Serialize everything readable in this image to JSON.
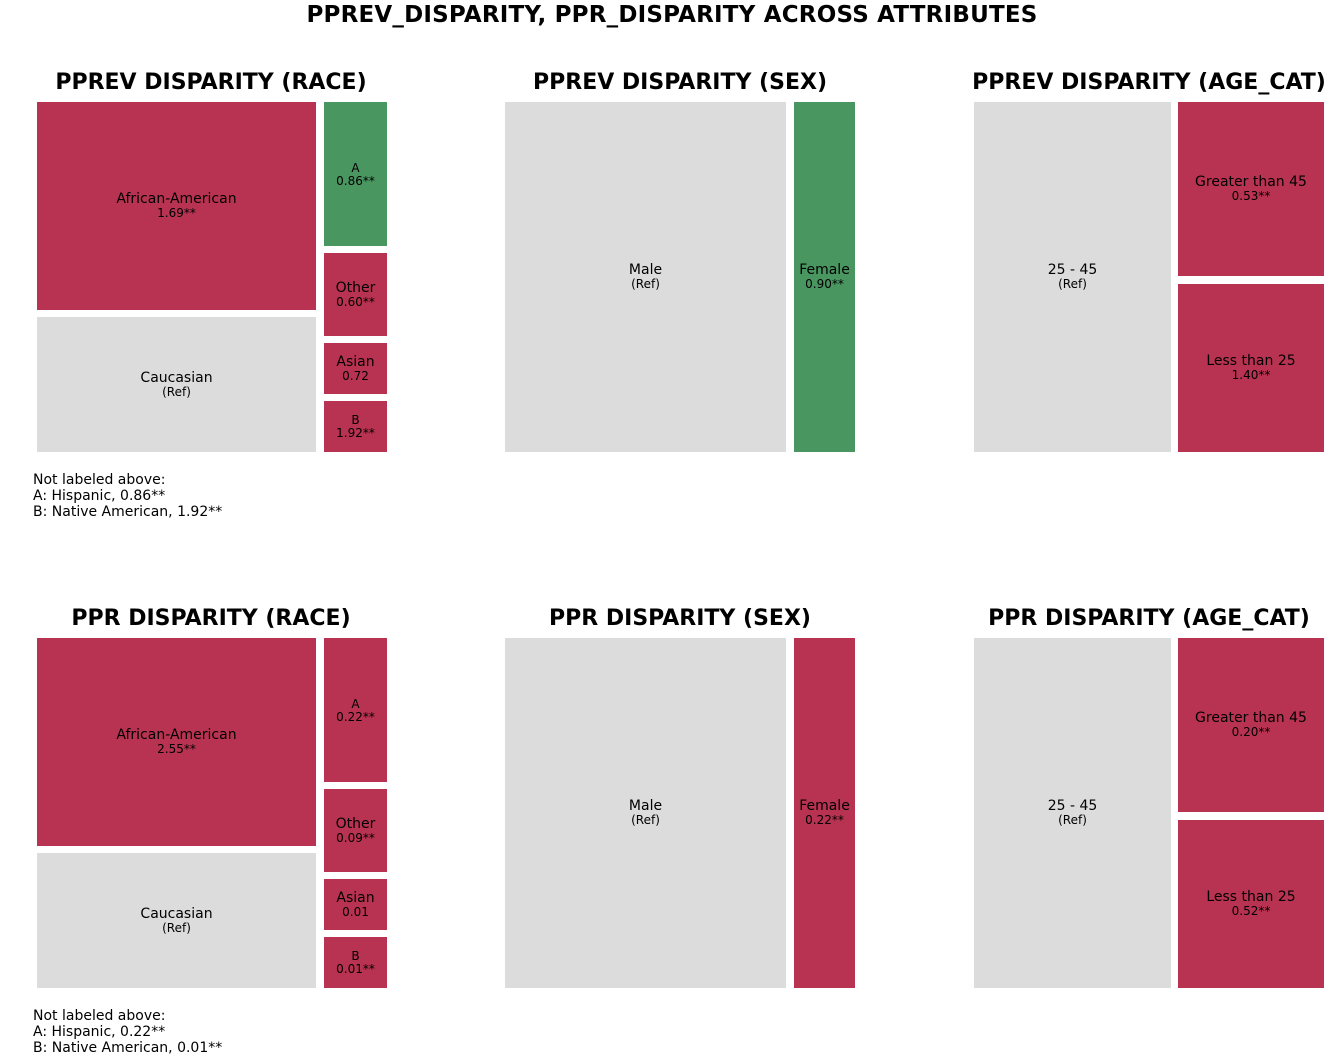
{
  "figure": {
    "title": "PPREV_DISPARITY, PPR_DISPARITY ACROSS ATTRIBUTES"
  },
  "colors": {
    "reference": "#dcdcdc",
    "above_reference": "#b73351",
    "below_reference_favorable": "#4a9660"
  },
  "chart_data": [
    {
      "type": "treemap",
      "title": "PPREV DISPARITY (RACE)",
      "tiles": [
        {
          "label": "African-American",
          "value": "1.69**",
          "color": "#b73351"
        },
        {
          "label": "Caucasian",
          "value": "(Ref)",
          "color": "#dcdcdc"
        },
        {
          "label": "A",
          "value": "0.86**",
          "color": "#4a9660"
        },
        {
          "label": "Other",
          "value": "0.60**",
          "color": "#b73351"
        },
        {
          "label": "Asian",
          "value": "0.72",
          "color": "#b73351"
        },
        {
          "label": "B",
          "value": "1.92**",
          "color": "#b73351"
        }
      ],
      "footnote": [
        "Not labeled above:",
        "A: Hispanic, 0.86**",
        "B: Native American, 1.92**"
      ]
    },
    {
      "type": "treemap",
      "title": "PPREV DISPARITY (SEX)",
      "tiles": [
        {
          "label": "Male",
          "value": "(Ref)",
          "color": "#dcdcdc"
        },
        {
          "label": "Female",
          "value": "0.90**",
          "color": "#4a9660"
        }
      ]
    },
    {
      "type": "treemap",
      "title": "PPREV DISPARITY (AGE_CAT)",
      "tiles": [
        {
          "label": "25 - 45",
          "value": "(Ref)",
          "color": "#dcdcdc"
        },
        {
          "label": "Greater than 45",
          "value": "0.53**",
          "color": "#b73351"
        },
        {
          "label": "Less than 25",
          "value": "1.40**",
          "color": "#b73351"
        }
      ]
    },
    {
      "type": "treemap",
      "title": "PPR DISPARITY (RACE)",
      "tiles": [
        {
          "label": "African-American",
          "value": "2.55**",
          "color": "#b73351"
        },
        {
          "label": "Caucasian",
          "value": "(Ref)",
          "color": "#dcdcdc"
        },
        {
          "label": "A",
          "value": "0.22**",
          "color": "#b73351"
        },
        {
          "label": "Other",
          "value": "0.09**",
          "color": "#b73351"
        },
        {
          "label": "Asian",
          "value": "0.01",
          "color": "#b73351"
        },
        {
          "label": "B",
          "value": "0.01**",
          "color": "#b73351"
        }
      ],
      "footnote": [
        "Not labeled above:",
        "A: Hispanic, 0.22**",
        "B: Native American, 0.01**"
      ]
    },
    {
      "type": "treemap",
      "title": "PPR DISPARITY (SEX)",
      "tiles": [
        {
          "label": "Male",
          "value": "(Ref)",
          "color": "#dcdcdc"
        },
        {
          "label": "Female",
          "value": "0.22**",
          "color": "#b73351"
        }
      ]
    },
    {
      "type": "treemap",
      "title": "PPR DISPARITY (AGE_CAT)",
      "tiles": [
        {
          "label": "25 - 45",
          "value": "(Ref)",
          "color": "#dcdcdc"
        },
        {
          "label": "Greater than 45",
          "value": "0.20**",
          "color": "#b73351"
        },
        {
          "label": "Less than 25",
          "value": "0.52**",
          "color": "#b73351"
        }
      ]
    }
  ]
}
